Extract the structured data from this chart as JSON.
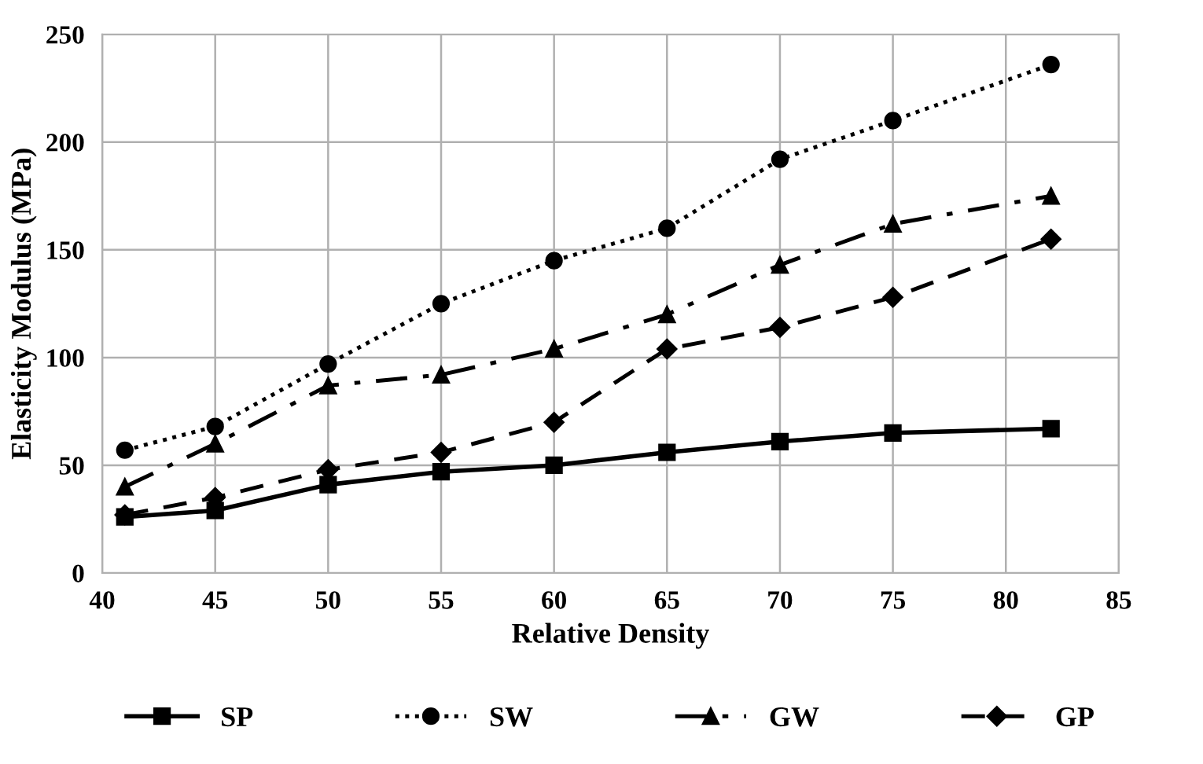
{
  "chart_data": {
    "type": "line",
    "xlabel": "Relative Density",
    "ylabel": "Elasticity Modulus (MPa)",
    "x": [
      41,
      45,
      50,
      55,
      60,
      65,
      70,
      75,
      82
    ],
    "series": [
      {
        "name": "SP",
        "color": "#000000",
        "marker": "square",
        "line_style": "solid",
        "values": [
          26,
          29,
          41,
          47,
          50,
          56,
          61,
          65,
          67
        ]
      },
      {
        "name": "SW",
        "color": "#000000",
        "marker": "circle",
        "line_style": "dotted",
        "values": [
          57,
          68,
          97,
          125,
          145,
          160,
          192,
          210,
          236
        ]
      },
      {
        "name": "GW",
        "color": "#000000",
        "marker": "triangle",
        "line_style": "dashdot",
        "values": [
          40,
          60,
          87,
          92,
          104,
          120,
          143,
          162,
          175
        ]
      },
      {
        "name": "GP",
        "color": "#000000",
        "marker": "diamond",
        "line_style": "dashed",
        "values": [
          27,
          35,
          48,
          56,
          70,
          104,
          114,
          128,
          155
        ]
      }
    ],
    "xlim": [
      40,
      85
    ],
    "xticks": [
      40,
      45,
      50,
      55,
      60,
      65,
      70,
      75,
      80,
      85
    ],
    "ylim": [
      0,
      250
    ],
    "yticks": [
      0,
      50,
      100,
      150,
      200,
      250
    ],
    "grid": true,
    "legend": "bottom"
  }
}
